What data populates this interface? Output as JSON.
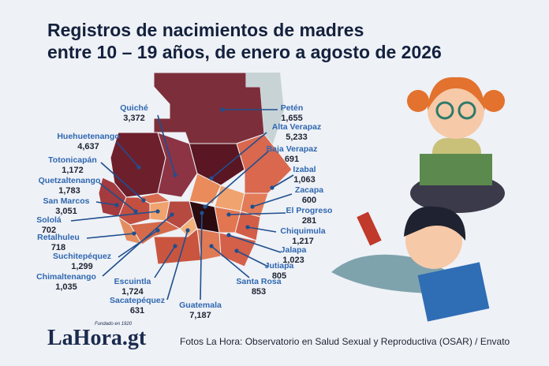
{
  "title": [
    "Registros de nacimientos de madres",
    "entre 10 – 19 años, de enero a agosto de 2026"
  ],
  "departments": [
    {
      "name": "Petén",
      "value": "1,655"
    },
    {
      "name": "Alta Verapaz",
      "value": "5,233"
    },
    {
      "name": "Baja Verapaz",
      "value": "691"
    },
    {
      "name": "Izabal",
      "value": "1,063"
    },
    {
      "name": "Zacapa",
      "value": "600"
    },
    {
      "name": "El Progreso",
      "value": "281"
    },
    {
      "name": "Chiquimula",
      "value": "1,217"
    },
    {
      "name": "Jalapa",
      "value": "1,023"
    },
    {
      "name": "Jutiapa",
      "value": "805"
    },
    {
      "name": "Santa Rosa",
      "value": "853"
    },
    {
      "name": "Guatemala",
      "value": "7,187"
    },
    {
      "name": "Sacatepéquez",
      "value": "631"
    },
    {
      "name": "Escuintla",
      "value": "1,724"
    },
    {
      "name": "Chimaltenango",
      "value": "1,035"
    },
    {
      "name": "Suchitepéquez",
      "value": "1,299"
    },
    {
      "name": "Retalhuleu",
      "value": "718"
    },
    {
      "name": "Sololá",
      "value": "702"
    },
    {
      "name": "San Marcos",
      "value": "3,051"
    },
    {
      "name": "Quetzaltenango",
      "value": "1,783"
    },
    {
      "name": "Totonicapán",
      "value": "1,172"
    },
    {
      "name": "Huehuetenango",
      "value": "4,637"
    },
    {
      "name": "Quiché",
      "value": "3,372"
    }
  ],
  "logo": {
    "name": "LaHora.gt",
    "tagline": "Fundado en 1920"
  },
  "credit": "Fotos La Hora: Observatorio en Salud Sexual y Reproductiva (OSAR) / Envato"
}
